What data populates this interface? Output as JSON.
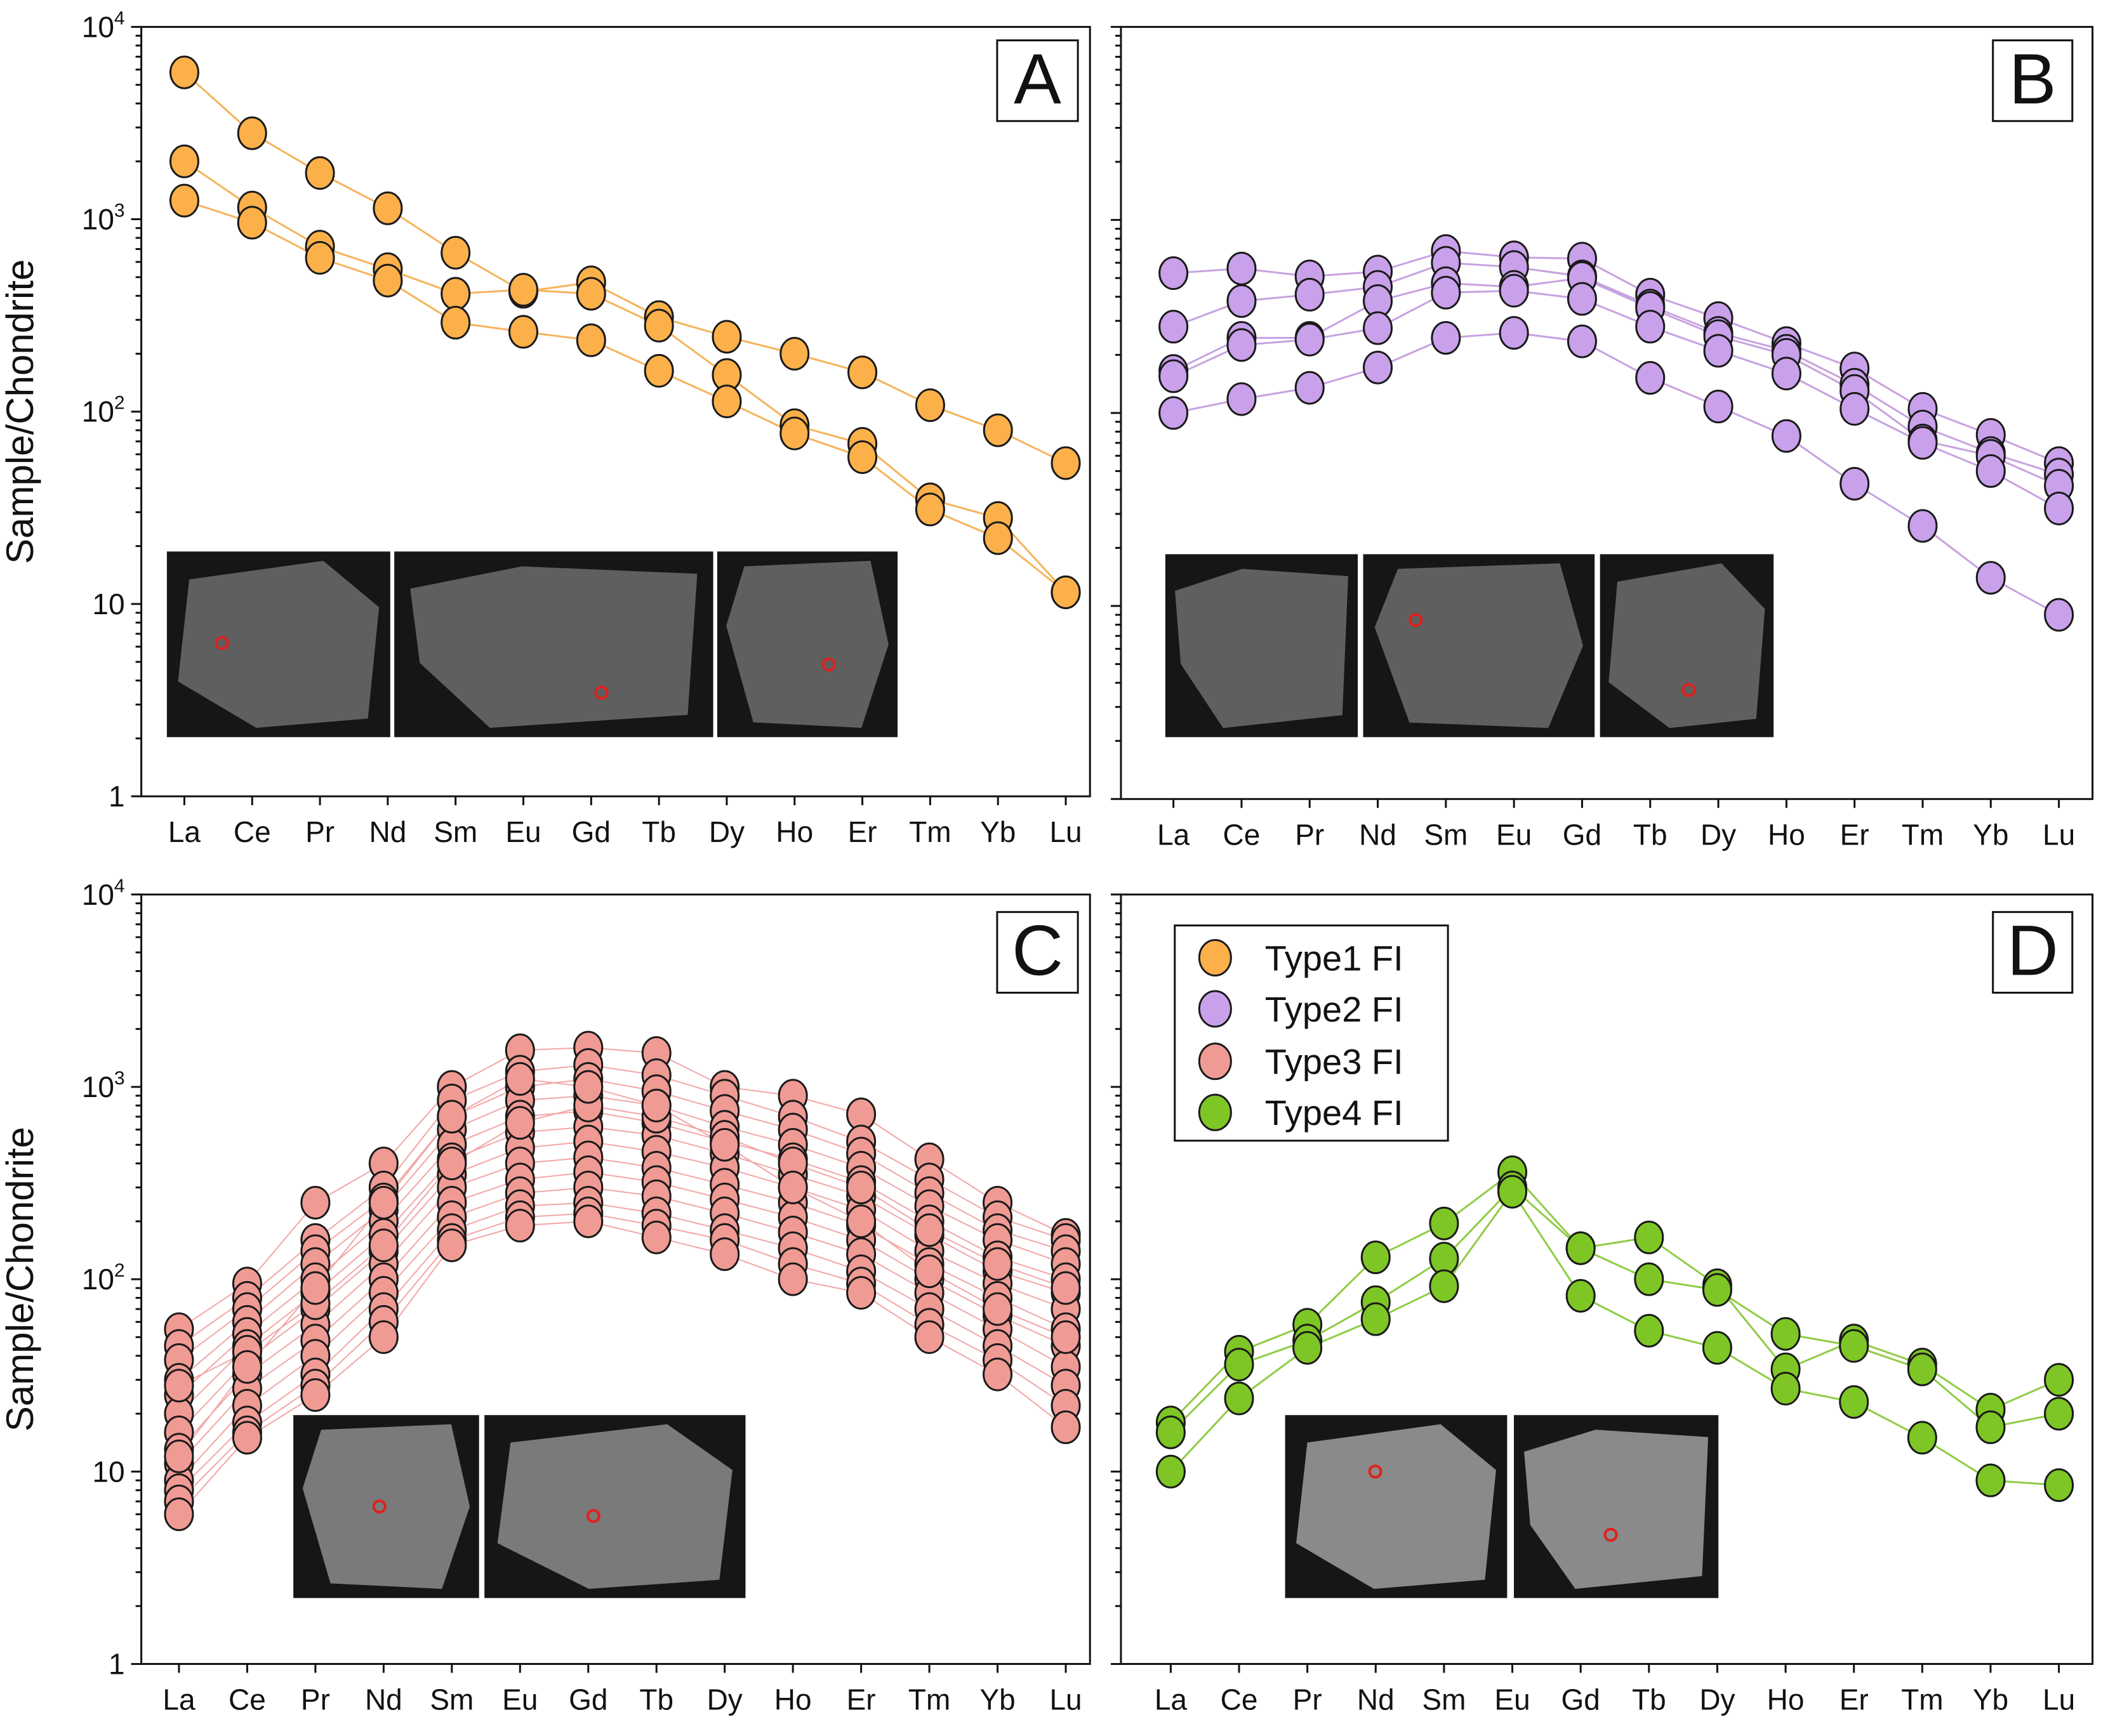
{
  "chart_data": [
    {
      "type": "line",
      "panel_label": "A",
      "ylabel": "Sample/Chondrite",
      "yscale": "log",
      "ylim": [
        1,
        10000
      ],
      "ytick_labels": [
        "1",
        "10",
        "10^2",
        "10^3",
        "10^4"
      ],
      "categories": [
        "La",
        "Ce",
        "Pr",
        "Nd",
        "Sm",
        "Eu",
        "Gd",
        "Tb",
        "Dy",
        "Ho",
        "Er",
        "Tm",
        "Yb",
        "Lu"
      ],
      "series_name": "Type1 FI",
      "color": "#fbb04a",
      "line_color": "#f5b45c",
      "series": [
        {
          "values": [
            5800,
            2800,
            1740,
            1140,
            670,
            420,
            470,
            310,
            245,
            200,
            160,
            108,
            80,
            54
          ]
        },
        {
          "values": [
            2000,
            1150,
            720,
            550,
            410,
            430,
            410,
            280,
            155,
            85,
            68,
            35,
            28,
            11.5
          ]
        },
        {
          "values": [
            1250,
            960,
            630,
            480,
            290,
            260,
            235,
            163,
            113,
            77,
            58,
            31,
            22,
            11.5
          ]
        }
      ]
    },
    {
      "type": "line",
      "panel_label": "B",
      "ylabel": "",
      "yscale": "log",
      "ylim": [
        1,
        10000
      ],
      "ytick_labels": [],
      "categories": [
        "La",
        "Ce",
        "Pr",
        "Nd",
        "Sm",
        "Eu",
        "Gd",
        "Tb",
        "Dy",
        "Ho",
        "Er",
        "Tm",
        "Yb",
        "Lu"
      ],
      "series_name": "Type2 FI",
      "color": "#c9a0ea",
      "line_color": "#c7a2e0",
      "series": [
        {
          "values": [
            530,
            560,
            510,
            540,
            690,
            640,
            630,
            410,
            310,
            230,
            170,
            105,
            77,
            55
          ]
        },
        {
          "values": [
            280,
            380,
            410,
            450,
            600,
            570,
            510,
            360,
            260,
            210,
            140,
            85,
            62,
            48
          ]
        },
        {
          "values": [
            165,
            245,
            245,
            380,
            470,
            450,
            500,
            350,
            250,
            200,
            130,
            72,
            60,
            42
          ]
        },
        {
          "values": [
            155,
            225,
            240,
            275,
            420,
            430,
            390,
            280,
            210,
            160,
            105,
            70,
            50,
            32
          ]
        },
        {
          "values": [
            100,
            118,
            135,
            172,
            245,
            260,
            235,
            152,
            108,
            76,
            43,
            26,
            14,
            9
          ]
        }
      ]
    },
    {
      "type": "line",
      "panel_label": "C",
      "ylabel": "Sample/Chondrite",
      "yscale": "log",
      "ylim": [
        1,
        10000
      ],
      "ytick_labels": [
        "1",
        "10",
        "10^2",
        "10^3",
        "10^4"
      ],
      "categories": [
        "La",
        "Ce",
        "Pr",
        "Nd",
        "Sm",
        "Eu",
        "Gd",
        "Tb",
        "Dy",
        "Ho",
        "Er",
        "Tm",
        "Yb",
        "Lu"
      ],
      "series_name": "Type3 FI",
      "color": "#f09a94",
      "line_color": "#f2a6a6",
      "series": [
        {
          "values": [
            55,
            95,
            250,
            400,
            1000,
            1550,
            1600,
            1500,
            1000,
            900,
            720,
            420,
            250,
            170
          ]
        },
        {
          "values": [
            45,
            80,
            160,
            300,
            850,
            1200,
            1300,
            1150,
            900,
            700,
            520,
            330,
            210,
            160
          ]
        },
        {
          "values": [
            38,
            70,
            140,
            260,
            700,
            1000,
            1100,
            950,
            750,
            600,
            450,
            280,
            180,
            140
          ]
        },
        {
          "values": [
            30,
            60,
            120,
            230,
            600,
            850,
            900,
            800,
            620,
            500,
            380,
            240,
            160,
            120
          ]
        },
        {
          "values": [
            25,
            52,
            100,
            200,
            500,
            700,
            750,
            650,
            520,
            420,
            320,
            200,
            130,
            100
          ]
        },
        {
          "values": [
            20,
            45,
            85,
            170,
            420,
            580,
            620,
            560,
            450,
            350,
            270,
            170,
            110,
            85
          ]
        },
        {
          "values": [
            16,
            38,
            70,
            140,
            350,
            480,
            520,
            460,
            380,
            300,
            230,
            140,
            95,
            70
          ]
        },
        {
          "values": [
            13,
            32,
            58,
            120,
            300,
            400,
            430,
            380,
            310,
            250,
            190,
            120,
            80,
            55
          ]
        },
        {
          "values": [
            11,
            27,
            48,
            100,
            250,
            330,
            360,
            320,
            260,
            210,
            160,
            100,
            65,
            45
          ]
        },
        {
          "values": [
            9,
            22,
            40,
            85,
            210,
            280,
            300,
            270,
            220,
            175,
            135,
            85,
            55,
            35
          ]
        },
        {
          "values": [
            8,
            18,
            32,
            70,
            180,
            240,
            250,
            220,
            180,
            145,
            110,
            70,
            45,
            28
          ]
        },
        {
          "values": [
            7,
            16,
            28,
            60,
            160,
            210,
            220,
            190,
            160,
            120,
            95,
            58,
            38,
            22
          ]
        },
        {
          "values": [
            6,
            15,
            25,
            50,
            150,
            190,
            200,
            165,
            135,
            100,
            85,
            50,
            32,
            17
          ]
        },
        {
          "values": [
            28,
            42,
            75,
            150,
            400,
            650,
            800,
            700,
            550,
            400,
            300,
            180,
            120,
            90
          ]
        },
        {
          "values": [
            12,
            35,
            90,
            250,
            700,
            1100,
            1000,
            800,
            500,
            300,
            200,
            110,
            70,
            50
          ]
        }
      ]
    },
    {
      "type": "line",
      "panel_label": "D",
      "ylabel": "",
      "yscale": "log",
      "ylim": [
        1,
        10000
      ],
      "ytick_labels": [],
      "categories": [
        "La",
        "Ce",
        "Pr",
        "Nd",
        "Sm",
        "Eu",
        "Gd",
        "Tb",
        "Dy",
        "Ho",
        "Er",
        "Tm",
        "Yb",
        "Lu"
      ],
      "series_name": "Type4 FI",
      "color": "#7ec625",
      "line_color": "#8fcc45",
      "series": [
        {
          "values": [
            18,
            42,
            58,
            130,
            195,
            360,
            145,
            165,
            93,
            34,
            48,
            36,
            21,
            30
          ]
        },
        {
          "values": [
            16,
            36,
            48,
            76,
            128,
            300,
            145,
            100,
            88,
            52,
            45,
            34,
            17,
            20
          ]
        },
        {
          "values": [
            10,
            24,
            44,
            62,
            92,
            285,
            82,
            54,
            44,
            27,
            23,
            15,
            9,
            8.5
          ]
        }
      ],
      "legend": {
        "placement": "top-left",
        "entries": [
          {
            "label": "Type1 FI",
            "color": "#fbb04a"
          },
          {
            "label": "Type2 FI",
            "color": "#c9a0ea"
          },
          {
            "label": "Type3 FI",
            "color": "#f09a94"
          },
          {
            "label": "Type4 FI",
            "color": "#7ec625"
          }
        ]
      }
    }
  ]
}
